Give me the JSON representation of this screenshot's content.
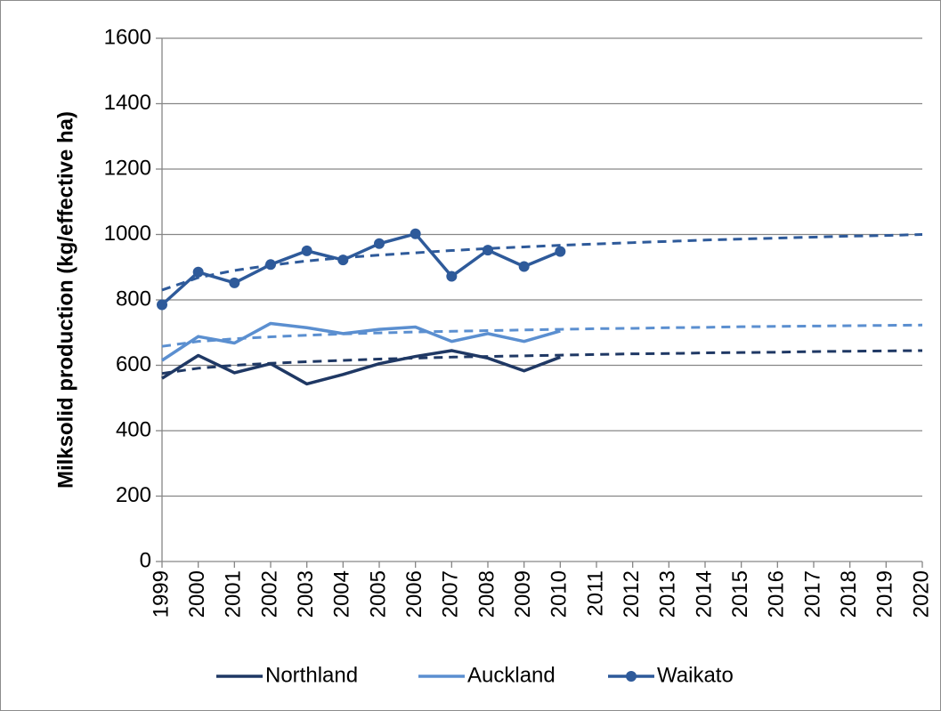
{
  "chart_data": {
    "type": "line",
    "y_label": "Milksolid production (kg/effective ha)",
    "categories": [
      "1999",
      "2000",
      "2001",
      "2002",
      "2003",
      "2004",
      "2005",
      "2006",
      "2007",
      "2008",
      "2009",
      "2010",
      "2011",
      "2012",
      "2013",
      "2014",
      "2015",
      "2016",
      "2017",
      "2018",
      "2019",
      "2020"
    ],
    "series": [
      {
        "name": "Northland",
        "color": "#1f3864",
        "marker": false,
        "values": [
          560,
          630,
          577,
          605,
          543,
          572,
          605,
          627,
          645,
          622,
          583,
          625,
          null,
          null,
          null,
          null,
          null,
          null,
          null,
          null,
          null,
          null
        ]
      },
      {
        "name": "Auckland",
        "color": "#5b8fd0",
        "marker": false,
        "values": [
          615,
          688,
          668,
          728,
          715,
          697,
          710,
          717,
          673,
          697,
          673,
          705,
          null,
          null,
          null,
          null,
          null,
          null,
          null,
          null,
          null,
          null
        ]
      },
      {
        "name": "Waikato",
        "color": "#2e5a9a",
        "marker": true,
        "values": [
          785,
          885,
          852,
          908,
          950,
          922,
          972,
          1002,
          872,
          952,
          902,
          948,
          null,
          null,
          null,
          null,
          null,
          null,
          null,
          null,
          null,
          null
        ]
      }
    ],
    "trendlines": [
      {
        "color": "#1f3864",
        "values": [
          575,
          591,
          600,
          606,
          611,
          615,
          619,
          622,
          625,
          627,
          629,
          631,
          633,
          635,
          636,
          638,
          639,
          640,
          642,
          643,
          644,
          645
        ]
      },
      {
        "color": "#5b8fd0",
        "values": [
          658,
          673,
          681,
          687,
          692,
          696,
          699,
          702,
          704,
          706,
          708,
          710,
          712,
          713,
          715,
          716,
          718,
          719,
          720,
          721,
          722,
          723
        ]
      },
      {
        "color": "#2e5a9a",
        "values": [
          830,
          868,
          890,
          906,
          919,
          929,
          937,
          944,
          951,
          957,
          962,
          967,
          971,
          975,
          979,
          983,
          986,
          989,
          992,
          995,
          997,
          1000
        ]
      }
    ],
    "ylim": [
      0,
      1600
    ],
    "yticks": [
      0,
      200,
      400,
      600,
      800,
      1000,
      1200,
      1400,
      1600
    ],
    "grid": true,
    "legend": "bottom"
  }
}
